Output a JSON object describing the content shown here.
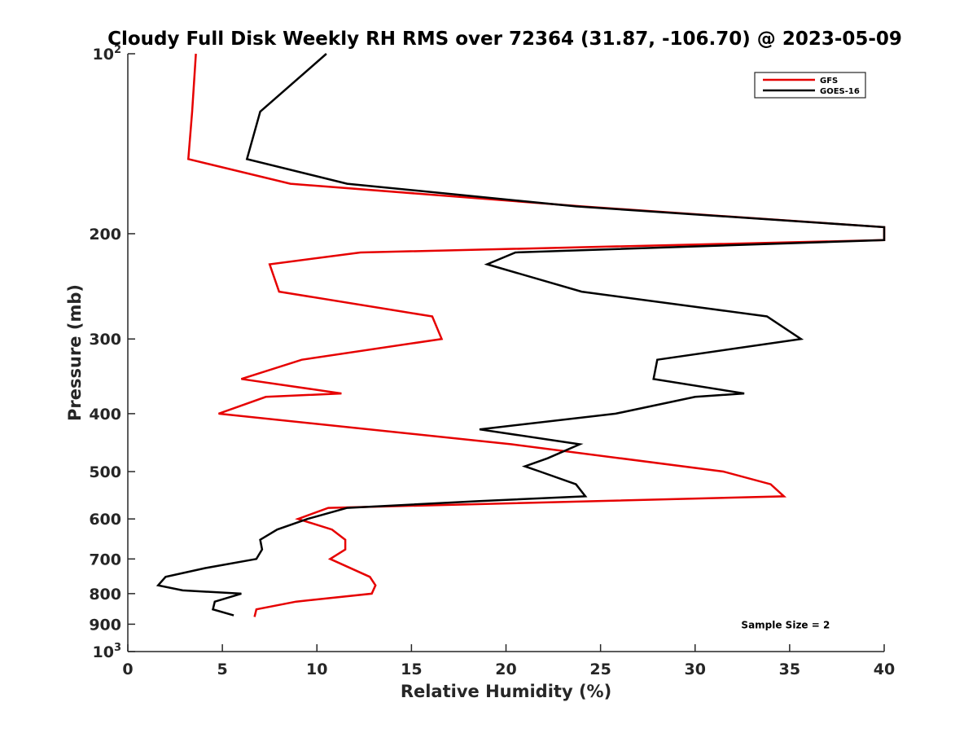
{
  "chart_data": {
    "type": "line",
    "title": "Cloudy Full Disk Weekly RH RMS over 72364 (31.87, -106.70) @ 2023-05-09",
    "xlabel": "Relative Humidity (%)",
    "ylabel": "Pressure (mb)",
    "xlim": [
      0,
      40
    ],
    "ylim": [
      100,
      1000
    ],
    "y_scale": "log",
    "y_reversed": true,
    "grid": false,
    "legend_position": "top-right",
    "x_ticks": [
      "0",
      "5",
      "10",
      "15",
      "20",
      "25",
      "30",
      "35",
      "40"
    ],
    "y_ticks": [
      {
        "value": 100,
        "base": "10",
        "exp": "2"
      },
      {
        "value": 200,
        "label": "200"
      },
      {
        "value": 300,
        "label": "300"
      },
      {
        "value": 400,
        "label": "400"
      },
      {
        "value": 500,
        "label": "500"
      },
      {
        "value": 600,
        "label": "600"
      },
      {
        "value": 700,
        "label": "700"
      },
      {
        "value": 800,
        "label": "800"
      },
      {
        "value": 900,
        "label": "900"
      },
      {
        "value": 1000,
        "base": "10",
        "exp": "3"
      }
    ],
    "series": [
      {
        "name": "GFS",
        "color": "#e60000",
        "points": [
          [
            3.6,
            100
          ],
          [
            3.4,
            125
          ],
          [
            3.2,
            150
          ],
          [
            8.6,
            165
          ],
          [
            24.0,
            180
          ],
          [
            40.0,
            195
          ],
          [
            40.0,
            205
          ],
          [
            12.3,
            215
          ],
          [
            7.5,
            225
          ],
          [
            8.0,
            250
          ],
          [
            16.1,
            275
          ],
          [
            16.6,
            300
          ],
          [
            9.2,
            325
          ],
          [
            6.0,
            350
          ],
          [
            11.3,
            370
          ],
          [
            7.3,
            375
          ],
          [
            4.8,
            400
          ],
          [
            20.3,
            450
          ],
          [
            31.5,
            500
          ],
          [
            34.0,
            525
          ],
          [
            34.7,
            550
          ],
          [
            10.6,
            575
          ],
          [
            9.0,
            600
          ],
          [
            10.8,
            625
          ],
          [
            11.5,
            650
          ],
          [
            11.5,
            675
          ],
          [
            10.7,
            700
          ],
          [
            12.8,
            750
          ],
          [
            13.1,
            775
          ],
          [
            12.9,
            800
          ],
          [
            8.9,
            825
          ],
          [
            6.8,
            850
          ],
          [
            6.7,
            875
          ]
        ]
      },
      {
        "name": "GOES-16",
        "color": "#000000",
        "points": [
          [
            10.5,
            100
          ],
          [
            7.0,
            125
          ],
          [
            6.3,
            150
          ],
          [
            11.6,
            165
          ],
          [
            23.7,
            180
          ],
          [
            40.0,
            195
          ],
          [
            40.0,
            205
          ],
          [
            20.5,
            215
          ],
          [
            19.0,
            225
          ],
          [
            24.0,
            250
          ],
          [
            33.8,
            275
          ],
          [
            35.6,
            300
          ],
          [
            28.0,
            325
          ],
          [
            27.8,
            350
          ],
          [
            32.6,
            370
          ],
          [
            30.0,
            375
          ],
          [
            25.8,
            400
          ],
          [
            18.6,
            425
          ],
          [
            23.9,
            450
          ],
          [
            22.2,
            475
          ],
          [
            21.0,
            490
          ],
          [
            21.8,
            500
          ],
          [
            23.7,
            525
          ],
          [
            24.2,
            550
          ],
          [
            18.6,
            560
          ],
          [
            11.6,
            575
          ],
          [
            9.5,
            600
          ],
          [
            7.9,
            625
          ],
          [
            7.0,
            650
          ],
          [
            7.1,
            675
          ],
          [
            6.8,
            700
          ],
          [
            4.1,
            725
          ],
          [
            2.0,
            750
          ],
          [
            1.6,
            775
          ],
          [
            2.9,
            790
          ],
          [
            6.0,
            800
          ],
          [
            4.6,
            825
          ],
          [
            4.5,
            850
          ],
          [
            5.6,
            870
          ]
        ]
      }
    ],
    "annotations": [
      {
        "text": "Sample Size = 2",
        "x": 33.0,
        "y": 900
      }
    ]
  }
}
